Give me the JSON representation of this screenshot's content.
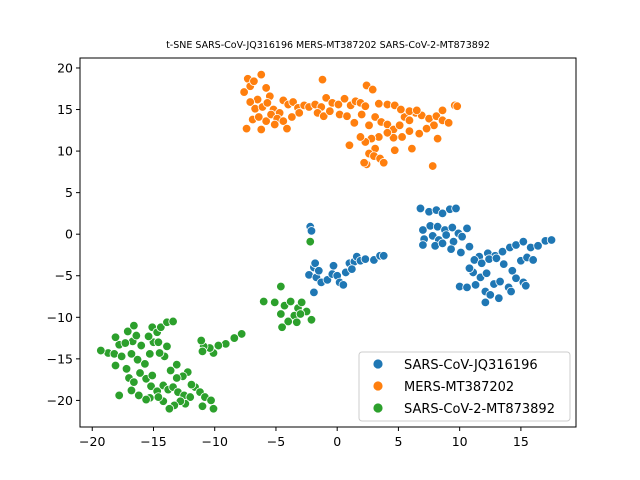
{
  "chart_data": {
    "type": "scatter",
    "title": "t-SNE SARS-CoV-JQ316196 MERS-MT387202 SARS-CoV-2-MT873892",
    "xlabel": "",
    "ylabel": "",
    "xlim": [
      -21,
      19.5
    ],
    "ylim": [
      -23.2,
      21.2
    ],
    "xticks": [
      -20,
      -15,
      -10,
      -5,
      0,
      5,
      10,
      15
    ],
    "yticks": [
      -20,
      -15,
      -10,
      -5,
      0,
      5,
      10,
      15,
      20
    ],
    "grid": false,
    "legend_position": "lower-right",
    "series": [
      {
        "name": "SARS-CoV-JQ316196",
        "color": "#1f77b4",
        "points": [
          [
            -2.2,
            0.9
          ],
          [
            -2.1,
            0.4
          ],
          [
            -2.3,
            -4.9
          ],
          [
            -1.9,
            -4.0
          ],
          [
            -1.8,
            -3.5
          ],
          [
            -1.7,
            -5.2
          ],
          [
            -1.5,
            -4.4
          ],
          [
            -1.3,
            -5.8
          ],
          [
            -1.9,
            -7.0
          ],
          [
            -0.8,
            -5.5
          ],
          [
            -0.4,
            -4.8
          ],
          [
            -0.3,
            -3.8
          ],
          [
            0.0,
            -5.0
          ],
          [
            0.2,
            -5.8
          ],
          [
            0.5,
            -6.1
          ],
          [
            0.7,
            -4.6
          ],
          [
            1.0,
            -3.5
          ],
          [
            1.4,
            -3.3
          ],
          [
            1.6,
            -2.7
          ],
          [
            1.9,
            -3.2
          ],
          [
            2.3,
            -3.0
          ],
          [
            3.0,
            -3.1
          ],
          [
            3.5,
            -2.6
          ],
          [
            3.8,
            -2.6
          ],
          [
            1.2,
            -4.2
          ],
          [
            6.8,
            3.1
          ],
          [
            7.5,
            2.7
          ],
          [
            8.1,
            2.9
          ],
          [
            8.6,
            2.5
          ],
          [
            9.2,
            3.0
          ],
          [
            9.7,
            3.1
          ],
          [
            7.0,
            0.5
          ],
          [
            7.6,
            1.0
          ],
          [
            8.2,
            0.9
          ],
          [
            8.8,
            0.5
          ],
          [
            9.4,
            0.8
          ],
          [
            9.9,
            0.1
          ],
          [
            10.6,
            0.7
          ],
          [
            7.1,
            -0.6
          ],
          [
            7.8,
            -0.2
          ],
          [
            8.3,
            -0.7
          ],
          [
            8.9,
            -0.1
          ],
          [
            9.5,
            -0.9
          ],
          [
            10.2,
            -0.3
          ],
          [
            7.0,
            -1.3
          ],
          [
            8.0,
            -1.4
          ],
          [
            8.6,
            -1.1
          ],
          [
            9.3,
            -1.8
          ],
          [
            10.1,
            -2.2
          ],
          [
            10.8,
            -1.5
          ],
          [
            11.6,
            -2.7
          ],
          [
            12.3,
            -2.3
          ],
          [
            12.9,
            -2.6
          ],
          [
            13.5,
            -2.1
          ],
          [
            14.1,
            -1.6
          ],
          [
            14.6,
            -1.3
          ],
          [
            15.2,
            -0.9
          ],
          [
            15.8,
            -1.6
          ],
          [
            16.4,
            -1.4
          ],
          [
            17.0,
            -0.8
          ],
          [
            17.5,
            -0.7
          ],
          [
            11.2,
            -3.1
          ],
          [
            11.8,
            -3.5
          ],
          [
            12.4,
            -3.0
          ],
          [
            13.0,
            -2.9
          ],
          [
            13.6,
            -3.6
          ],
          [
            14.3,
            -4.4
          ],
          [
            15.0,
            -3.2
          ],
          [
            15.5,
            -2.8
          ],
          [
            16.0,
            -3.1
          ],
          [
            11.1,
            -4.6
          ],
          [
            11.7,
            -5.2
          ],
          [
            12.2,
            -4.7
          ],
          [
            12.8,
            -6.0
          ],
          [
            13.3,
            -5.7
          ],
          [
            14.0,
            -6.4
          ],
          [
            14.6,
            -5.3
          ],
          [
            15.2,
            -5.8
          ],
          [
            15.4,
            -6.2
          ],
          [
            10.0,
            -6.3
          ],
          [
            10.6,
            -6.4
          ],
          [
            11.3,
            -6.1
          ],
          [
            12.1,
            -6.9
          ],
          [
            12.5,
            -7.3
          ],
          [
            13.2,
            -7.7
          ],
          [
            14.2,
            -6.9
          ],
          [
            12.1,
            -8.2
          ],
          [
            10.8,
            -4.1
          ]
        ]
      },
      {
        "name": "MERS-MT387202",
        "color": "#ff7f0e",
        "points": [
          [
            -7.6,
            17.1
          ],
          [
            -7.3,
            18.7
          ],
          [
            -7.1,
            17.8
          ],
          [
            -6.8,
            18.4
          ],
          [
            -6.2,
            19.2
          ],
          [
            -5.8,
            17.6
          ],
          [
            -5.5,
            16.6
          ],
          [
            -6.5,
            16.2
          ],
          [
            -7.1,
            15.9
          ],
          [
            -6.7,
            15.1
          ],
          [
            -6.1,
            15.3
          ],
          [
            -5.7,
            15.8
          ],
          [
            -5.2,
            15.0
          ],
          [
            -4.7,
            14.6
          ],
          [
            -4.4,
            16.1
          ],
          [
            -4.0,
            15.6
          ],
          [
            -3.6,
            15.9
          ],
          [
            -3.2,
            15.2
          ],
          [
            -2.7,
            15.5
          ],
          [
            -2.3,
            15.3
          ],
          [
            -1.8,
            15.6
          ],
          [
            -1.3,
            15.3
          ],
          [
            -0.9,
            16.4
          ],
          [
            -0.4,
            15.8
          ],
          [
            0.1,
            15.6
          ],
          [
            0.6,
            16.3
          ],
          [
            1.1,
            15.5
          ],
          [
            1.5,
            16.0
          ],
          [
            1.9,
            15.8
          ],
          [
            2.3,
            15.4
          ],
          [
            -6.9,
            13.8
          ],
          [
            -6.4,
            14.1
          ],
          [
            -5.8,
            13.6
          ],
          [
            -5.4,
            14.4
          ],
          [
            -4.9,
            13.9
          ],
          [
            -4.4,
            13.6
          ],
          [
            -3.7,
            14.1
          ],
          [
            -3.1,
            14.6
          ],
          [
            -7.4,
            12.7
          ],
          [
            -6.2,
            12.6
          ],
          [
            -5.1,
            13.2
          ],
          [
            -4.1,
            12.7
          ],
          [
            -1.6,
            14.6
          ],
          [
            -1.1,
            14.2
          ],
          [
            -0.6,
            14.8
          ],
          [
            0.2,
            14.4
          ],
          [
            0.8,
            14.2
          ],
          [
            1.4,
            13.4
          ],
          [
            2.0,
            14.4
          ],
          [
            2.6,
            13.1
          ],
          [
            3.1,
            14.1
          ],
          [
            3.6,
            13.5
          ],
          [
            4.1,
            13.2
          ],
          [
            4.6,
            12.6
          ],
          [
            5.1,
            13.1
          ],
          [
            5.5,
            14.1
          ],
          [
            5.9,
            13.7
          ],
          [
            6.4,
            14.6
          ],
          [
            6.9,
            14.3
          ],
          [
            7.5,
            13.9
          ],
          [
            8.1,
            14.2
          ],
          [
            8.6,
            13.7
          ],
          [
            9.1,
            13.4
          ],
          [
            9.6,
            15.5
          ],
          [
            9.8,
            15.4
          ],
          [
            8.6,
            14.9
          ],
          [
            7.9,
            13.1
          ],
          [
            7.3,
            12.7
          ],
          [
            6.7,
            12.1
          ],
          [
            5.9,
            12.4
          ],
          [
            5.3,
            11.7
          ],
          [
            4.6,
            11.6
          ],
          [
            4.1,
            12.2
          ],
          [
            3.4,
            11.7
          ],
          [
            2.8,
            11.5
          ],
          [
            2.3,
            11.1
          ],
          [
            1.9,
            11.7
          ],
          [
            1.0,
            10.7
          ],
          [
            3.1,
            10.3
          ],
          [
            2.6,
            9.7
          ],
          [
            3.0,
            9.4
          ],
          [
            3.5,
            9.1
          ],
          [
            3.8,
            8.6
          ],
          [
            2.4,
            8.4
          ],
          [
            2.2,
            8.6
          ],
          [
            7.8,
            8.2
          ],
          [
            8.2,
            11.5
          ],
          [
            4.7,
            10.1
          ],
          [
            6.1,
            10.3
          ],
          [
            2.4,
            17.9
          ],
          [
            2.9,
            17.4
          ],
          [
            -1.2,
            18.6
          ],
          [
            3.4,
            15.7
          ],
          [
            4.1,
            15.6
          ],
          [
            4.7,
            15.5
          ],
          [
            5.2,
            15.0
          ],
          [
            5.9,
            14.8
          ],
          [
            6.5,
            14.9
          ]
        ]
      },
      {
        "name": "SARS-CoV-2-MT873892",
        "color": "#2ca02c",
        "points": [
          [
            -2.2,
            -0.9
          ],
          [
            -4.6,
            -6.3
          ],
          [
            -4.3,
            -8.6
          ],
          [
            -3.8,
            -8.1
          ],
          [
            -3.5,
            -9.8
          ],
          [
            -3.2,
            -8.9
          ],
          [
            -2.9,
            -8.2
          ],
          [
            -2.5,
            -9.3
          ],
          [
            -2.1,
            -10.3
          ],
          [
            -4.0,
            -10.5
          ],
          [
            -4.6,
            -9.6
          ],
          [
            -5.1,
            -8.2
          ],
          [
            -6.0,
            -8.1
          ],
          [
            -4.5,
            -11.2
          ],
          [
            -3.3,
            -10.6
          ],
          [
            -3.0,
            -9.6
          ],
          [
            -7.8,
            -12.0
          ],
          [
            -8.4,
            -12.5
          ],
          [
            -9.1,
            -13.2
          ],
          [
            -9.7,
            -13.4
          ],
          [
            -10.1,
            -14.3
          ],
          [
            -10.4,
            -13.7
          ],
          [
            -10.9,
            -13.5
          ],
          [
            -11.1,
            -12.8
          ],
          [
            -11.0,
            -14.1
          ],
          [
            -12.2,
            -16.6
          ],
          [
            -12.6,
            -17.1
          ],
          [
            -13.1,
            -15.7
          ],
          [
            -13.6,
            -16.4
          ],
          [
            -14.1,
            -14.7
          ],
          [
            -14.5,
            -14.3
          ],
          [
            -15.0,
            -13.0
          ],
          [
            -15.3,
            -14.4
          ],
          [
            -15.1,
            -11.2
          ],
          [
            -14.7,
            -11.8
          ],
          [
            -14.4,
            -11.2
          ],
          [
            -13.9,
            -10.6
          ],
          [
            -13.4,
            -10.5
          ],
          [
            -15.7,
            -15.6
          ],
          [
            -16.3,
            -15.1
          ],
          [
            -16.8,
            -14.4
          ],
          [
            -16.7,
            -12.9
          ],
          [
            -16.4,
            -12.2
          ],
          [
            -17.1,
            -11.7
          ],
          [
            -16.6,
            -11.0
          ],
          [
            -17.8,
            -13.3
          ],
          [
            -18.1,
            -12.4
          ],
          [
            -18.7,
            -14.3
          ],
          [
            -19.3,
            -14.0
          ],
          [
            -18.2,
            -14.4
          ],
          [
            -18.1,
            -15.8
          ],
          [
            -17.6,
            -14.7
          ],
          [
            -17.2,
            -16.2
          ],
          [
            -17.0,
            -17.3
          ],
          [
            -16.6,
            -17.8
          ],
          [
            -16.1,
            -16.7
          ],
          [
            -15.6,
            -17.4
          ],
          [
            -15.2,
            -18.3
          ],
          [
            -14.7,
            -18.9
          ],
          [
            -14.2,
            -18.2
          ],
          [
            -13.8,
            -18.7
          ],
          [
            -13.4,
            -18.4
          ],
          [
            -13.0,
            -19.0
          ],
          [
            -12.5,
            -19.4
          ],
          [
            -12.0,
            -19.6
          ],
          [
            -11.6,
            -18.4
          ],
          [
            -11.2,
            -19.0
          ],
          [
            -10.8,
            -19.6
          ],
          [
            -10.3,
            -20.0
          ],
          [
            -10.1,
            -21.0
          ],
          [
            -11.0,
            -20.7
          ],
          [
            -12.4,
            -20.4
          ],
          [
            -12.8,
            -20.1
          ],
          [
            -13.3,
            -20.6
          ],
          [
            -13.7,
            -21.0
          ],
          [
            -14.2,
            -20.1
          ],
          [
            -14.6,
            -19.6
          ],
          [
            -15.3,
            -19.7
          ],
          [
            -15.6,
            -19.9
          ],
          [
            -16.2,
            -19.4
          ],
          [
            -16.8,
            -18.8
          ],
          [
            -17.8,
            -19.4
          ],
          [
            -15.1,
            -17.0
          ],
          [
            -13.1,
            -17.3
          ],
          [
            -11.9,
            -18.1
          ],
          [
            -16.0,
            -13.4
          ],
          [
            -13.9,
            -13.5
          ],
          [
            -14.6,
            -13.0
          ],
          [
            -15.4,
            -12.3
          ],
          [
            -17.3,
            -13.1
          ]
        ]
      }
    ]
  }
}
